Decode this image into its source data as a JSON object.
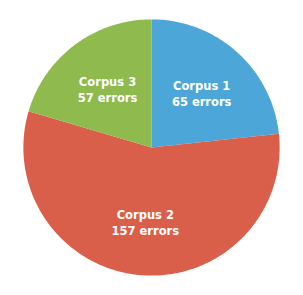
{
  "chart_data": {
    "type": "pie",
    "categories": [
      "Corpus 1",
      "Corpus 2",
      "Corpus 3"
    ],
    "values": [
      65,
      157,
      57
    ],
    "value_labels": [
      "65 errors",
      "157 errors",
      "57 errors"
    ],
    "colors": [
      "#4da6d8",
      "#d95f4b",
      "#8fba4e"
    ],
    "data_labels": true
  }
}
